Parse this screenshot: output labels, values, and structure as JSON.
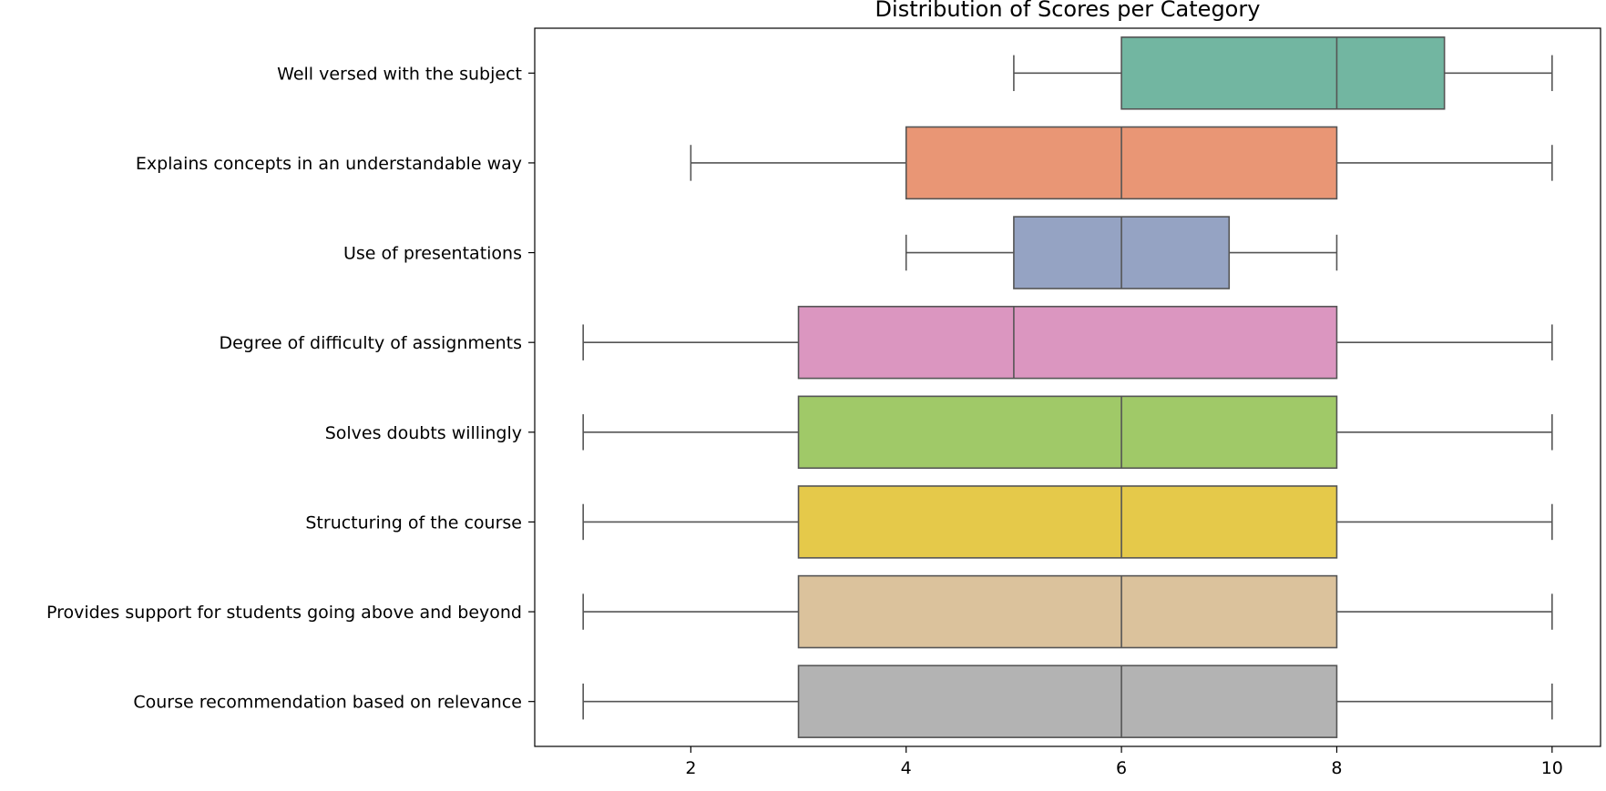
{
  "chart_data": {
    "type": "boxplot",
    "title": "Distribution of Scores per Category",
    "xlabel": "",
    "ylabel": "",
    "orientation": "horizontal",
    "xlim": [
      0.55,
      10.45
    ],
    "xticks": [
      2,
      4,
      6,
      8,
      10
    ],
    "grid": false,
    "categories": [
      "Well versed with the subject",
      "Explains concepts in an understandable way",
      "Use of presentations",
      "Degree of difficulty of assignments",
      "Solves doubts willingly",
      "Structuring of the course",
      "Provides support for students going above and beyond",
      "Course recommendation based on relevance"
    ],
    "boxes": [
      {
        "whisker_low": 5,
        "q1": 6,
        "median": 8,
        "q3": 9,
        "whisker_high": 10,
        "color": "#72b6a1"
      },
      {
        "whisker_low": 2,
        "q1": 4,
        "median": 6,
        "q3": 8,
        "whisker_high": 10,
        "color": "#e99675"
      },
      {
        "whisker_low": 4,
        "q1": 5,
        "median": 6,
        "q3": 7,
        "whisker_high": 8,
        "color": "#95a3c3"
      },
      {
        "whisker_low": 1,
        "q1": 3,
        "median": 5,
        "q3": 8,
        "whisker_high": 10,
        "color": "#db96c0"
      },
      {
        "whisker_low": 1,
        "q1": 3,
        "median": 6,
        "q3": 8,
        "whisker_high": 10,
        "color": "#a0c968"
      },
      {
        "whisker_low": 1,
        "q1": 3,
        "median": 6,
        "q3": 8,
        "whisker_high": 10,
        "color": "#e5c94a"
      },
      {
        "whisker_low": 1,
        "q1": 3,
        "median": 6,
        "q3": 8,
        "whisker_high": 10,
        "color": "#dbc29c"
      },
      {
        "whisker_low": 1,
        "q1": 3,
        "median": 6,
        "q3": 8,
        "whisker_high": 10,
        "color": "#b3b3b3"
      }
    ],
    "box_edge_color": "#555555"
  }
}
